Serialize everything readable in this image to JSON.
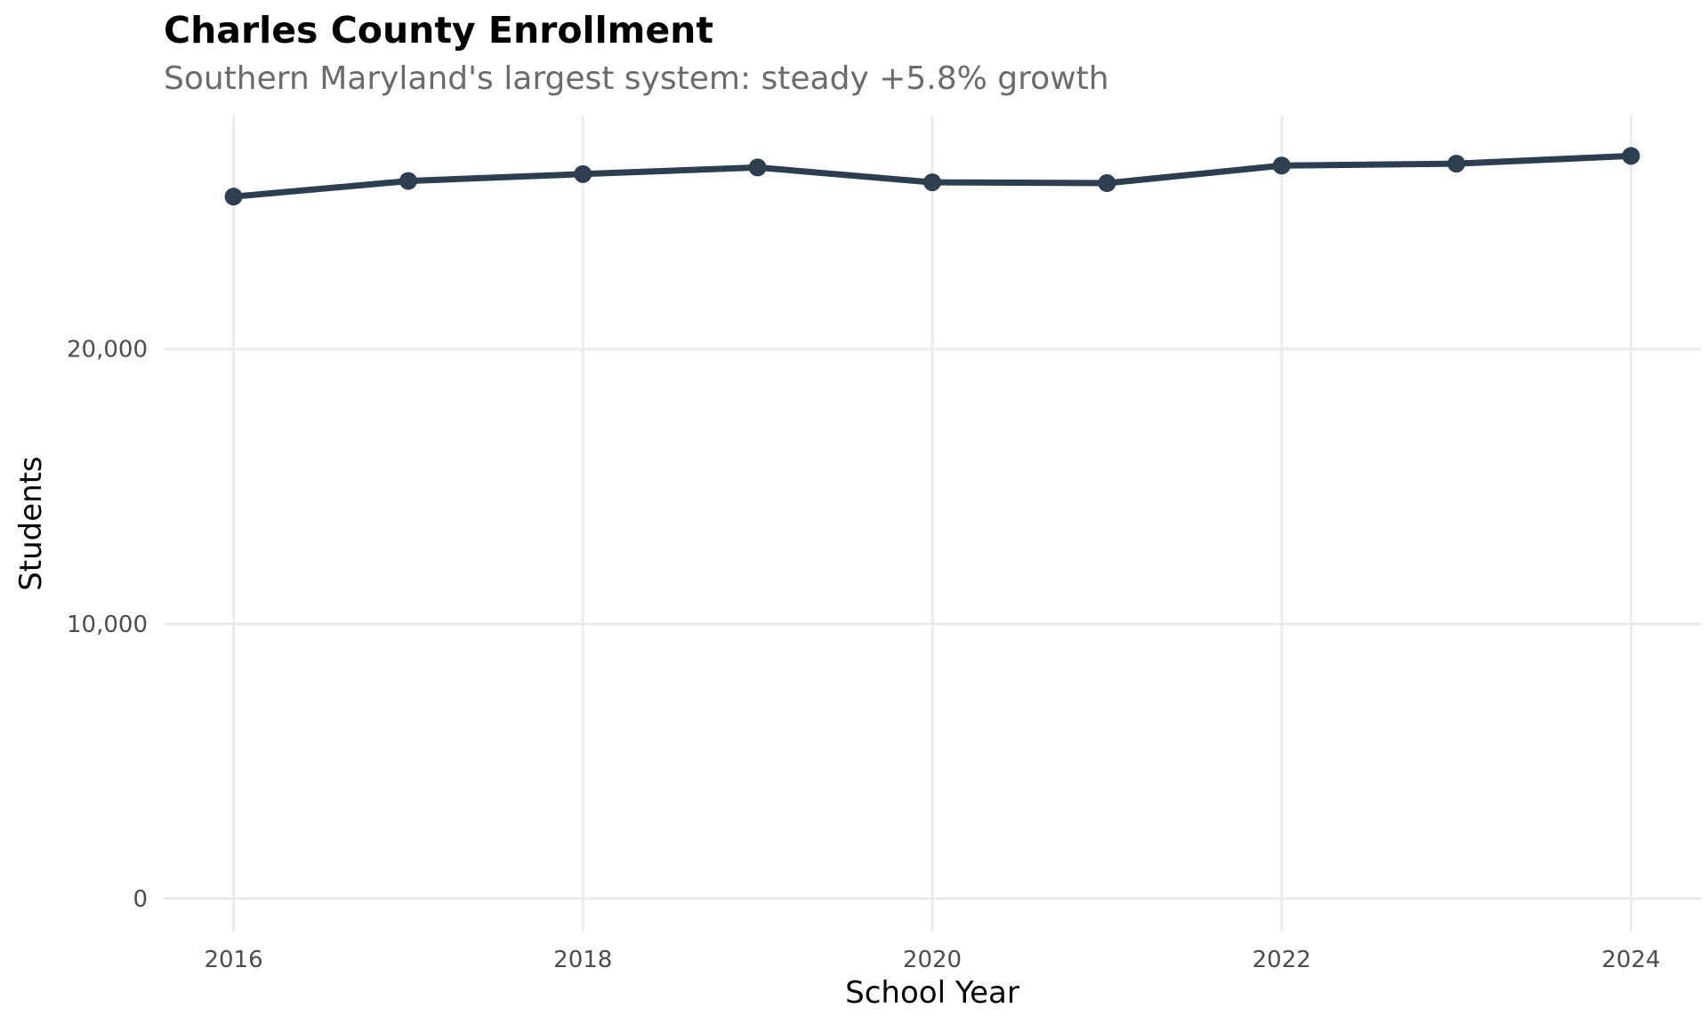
{
  "chart_data": {
    "type": "line",
    "title": "Charles County Enrollment",
    "subtitle": "Southern Maryland's largest system: steady +5.8% growth",
    "xlabel": "School Year",
    "ylabel": "Students",
    "x": [
      2016,
      2017,
      2018,
      2019,
      2020,
      2021,
      2022,
      2023,
      2024
    ],
    "series": [
      {
        "name": "Students",
        "values": [
          25550,
          26120,
          26370,
          26610,
          26070,
          26040,
          26680,
          26750,
          27030
        ]
      }
    ],
    "xlim": [
      2015.6,
      2024.4
    ],
    "ylim": [
      -1200,
      28500
    ],
    "xticks": [
      {
        "value": 2016,
        "label": "2016"
      },
      {
        "value": 2018,
        "label": "2018"
      },
      {
        "value": 2020,
        "label": "2020"
      },
      {
        "value": 2022,
        "label": "2022"
      },
      {
        "value": 2024,
        "label": "2024"
      }
    ],
    "yticks": [
      {
        "value": 0,
        "label": "0"
      },
      {
        "value": 10000,
        "label": "10,000"
      },
      {
        "value": 20000,
        "label": "20,000"
      }
    ],
    "grid": true,
    "legend": "none",
    "colors": {
      "line": "#2c3e50",
      "grid": "#ebebeb",
      "subtitle": "#6b6b6b"
    }
  }
}
